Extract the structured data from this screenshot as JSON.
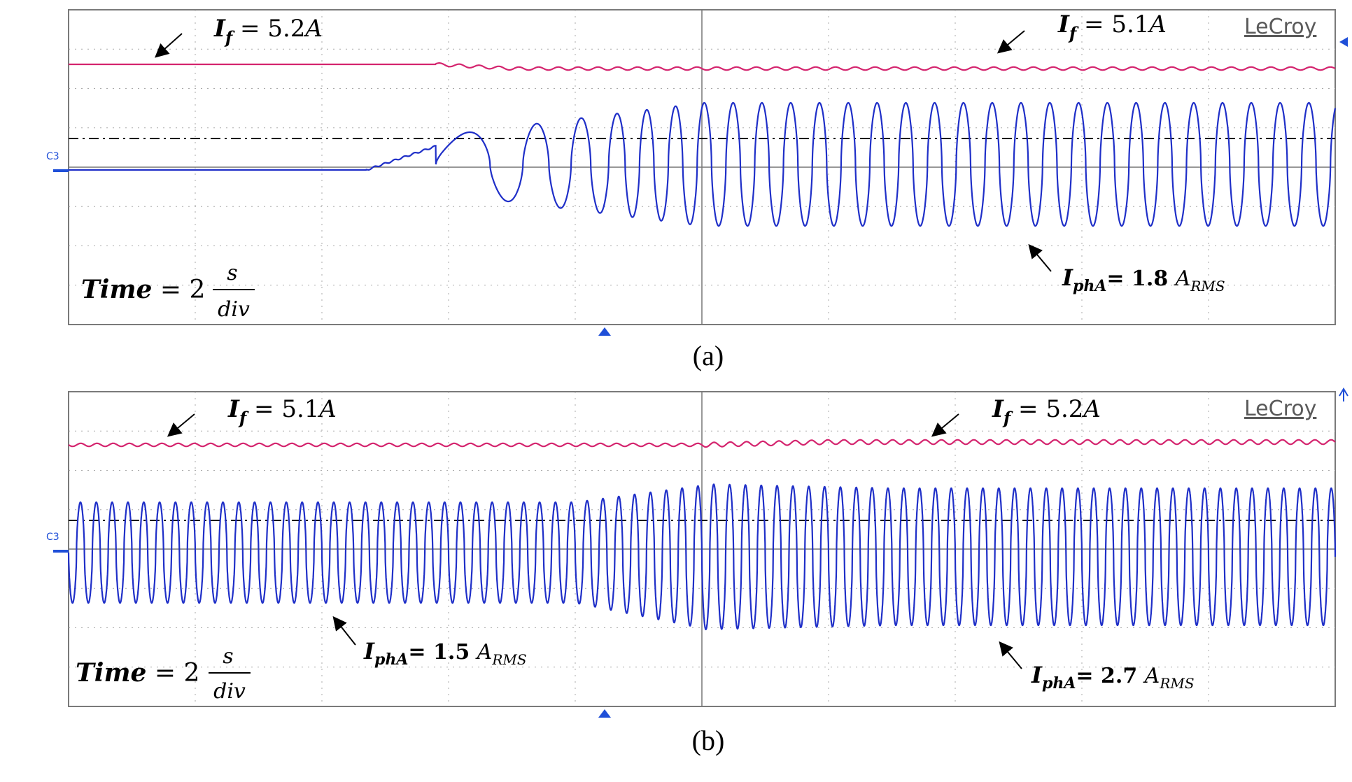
{
  "brand": "LeCroy",
  "channel_label": "C3",
  "colors": {
    "if_trace": "#d4246e",
    "phase_trace": "#1f2fc8",
    "grid": "#7a7a7a",
    "frame": "#7a7a7a",
    "marker": "#1f4fd8"
  },
  "chart_data": [
    {
      "panel": "(a)",
      "type": "line",
      "time_per_div": "Time = 2 s/div",
      "x": {
        "unit": "s",
        "range": [
          0,
          20
        ],
        "divisions": 10
      },
      "series": [
        {
          "name": "I_f",
          "unit": "A",
          "before_value": 5.2,
          "after_value": 5.1,
          "description": "field current steps slightly down after ~6 s and shows small ripple"
        },
        {
          "name": "I_phA",
          "unit": "A_RMS",
          "before_value": 0,
          "after_value": 1.8,
          "oscillation_start_s": 7.3,
          "full_amplitude_at_s": 10
        }
      ],
      "annotations": {
        "if_left": {
          "label": "I",
          "sub": "f",
          "value": " = 5.2",
          "unit": "A"
        },
        "if_right": {
          "label": "I",
          "sub": "f",
          "value": " = 5.1",
          "unit": "A"
        },
        "iph": {
          "label": "I",
          "sub": "phA",
          "value": "= 1.8 ",
          "unit": "A",
          "unit_sub": "RMS"
        },
        "time": {
          "label": "Time",
          "eq": " = 2",
          "num": "s",
          "den": "div"
        }
      },
      "caption": "(a)"
    },
    {
      "panel": "(b)",
      "type": "line",
      "time_per_div": "Time = 2 s/div",
      "x": {
        "unit": "s",
        "range": [
          0,
          20
        ],
        "divisions": 10
      },
      "series": [
        {
          "name": "I_f",
          "unit": "A",
          "before_value": 5.1,
          "after_value": 5.2
        },
        {
          "name": "I_phA",
          "unit": "A_RMS",
          "before_value": 1.5,
          "after_value": 2.7,
          "transition_start_s": 8,
          "transition_end_s": 10
        }
      ],
      "annotations": {
        "if_left": {
          "label": "I",
          "sub": "f",
          "value": " = 5.1",
          "unit": "A"
        },
        "if_right": {
          "label": "I",
          "sub": "f",
          "value": " = 5.2",
          "unit": "A"
        },
        "iph_left": {
          "label": "I",
          "sub": "phA",
          "value": "= 1.5 ",
          "unit": "A",
          "unit_sub": "RMS"
        },
        "iph_right": {
          "label": "I",
          "sub": "phA",
          "value": "= 2.7 ",
          "unit": "A",
          "unit_sub": "RMS"
        },
        "time": {
          "label": "Time",
          "eq": " = 2",
          "num": "s",
          "den": "div"
        }
      },
      "caption": "(b)"
    }
  ]
}
